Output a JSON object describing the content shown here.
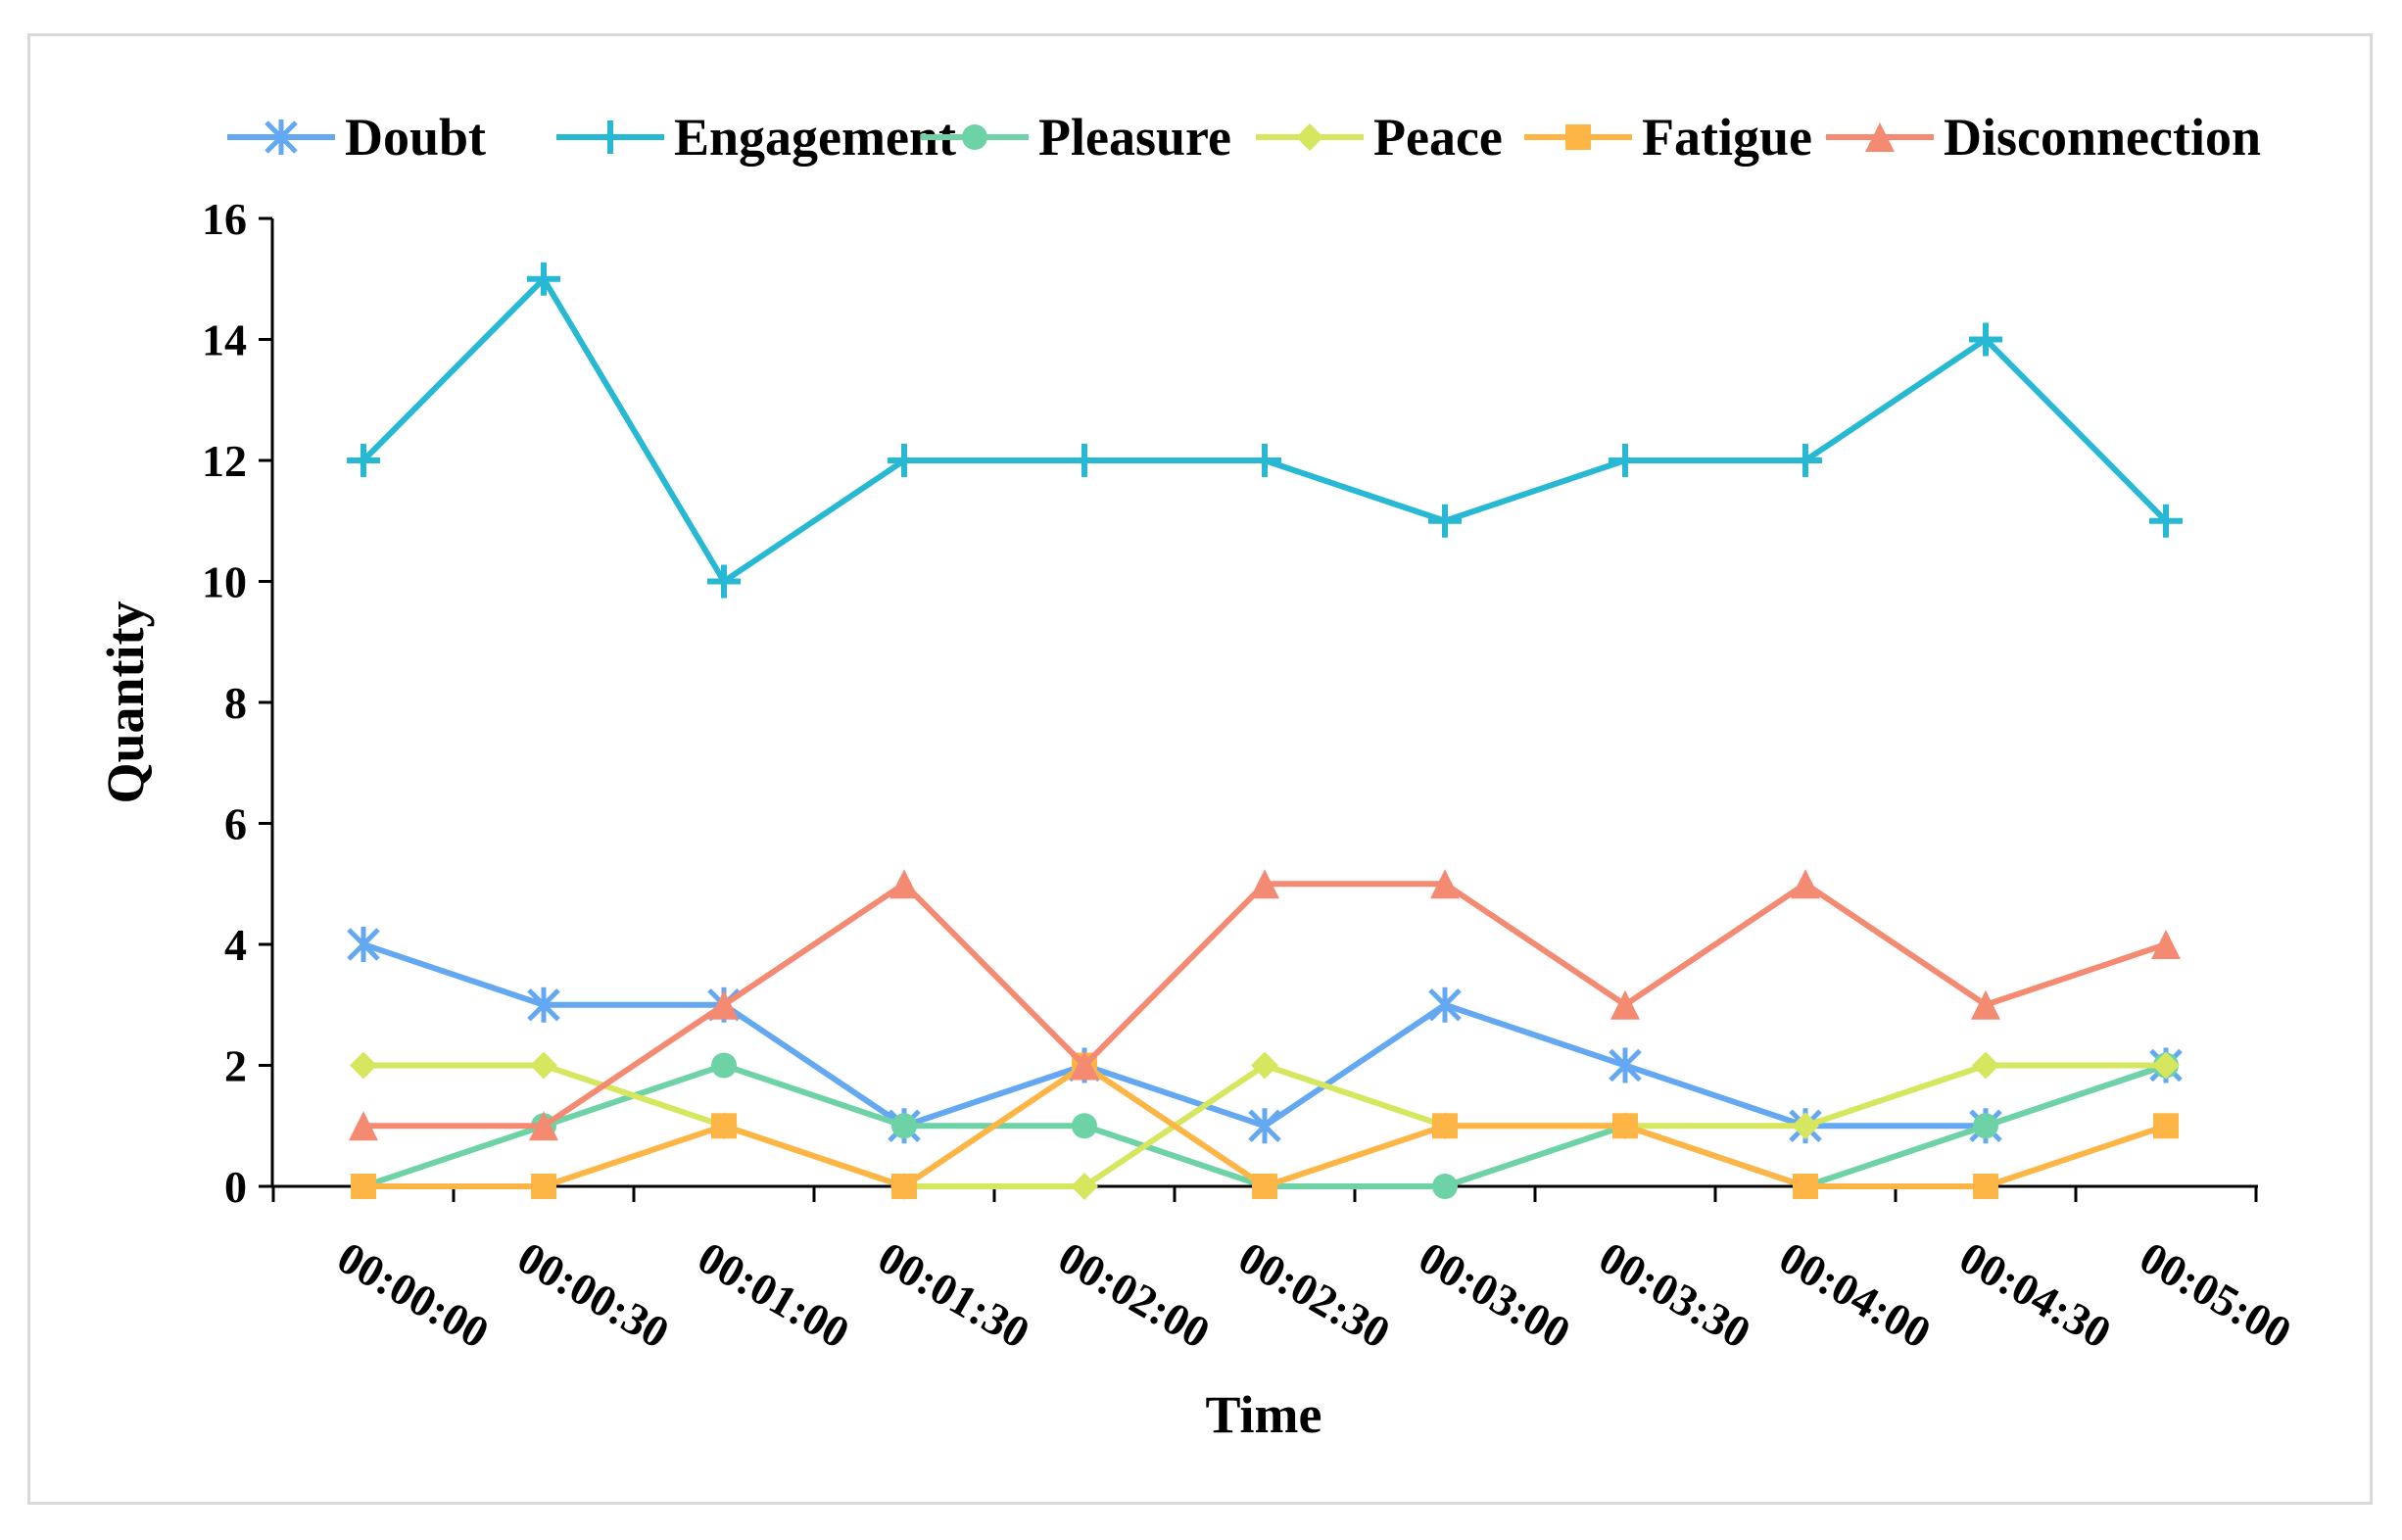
{
  "chart_data": {
    "type": "line",
    "title": "",
    "xlabel": "Time",
    "ylabel": "Quantity",
    "ylim": [
      0,
      16
    ],
    "yticks": [
      0,
      2,
      4,
      6,
      8,
      10,
      12,
      14,
      16
    ],
    "categories": [
      "00:00:00",
      "00:00:30",
      "00:01:00",
      "00:01:30",
      "00:02:00",
      "00:02:30",
      "00:03:00",
      "00:03:30",
      "00:04:00",
      "00:04:30",
      "00:05:00"
    ],
    "legend_position": "top",
    "grid": false,
    "series": [
      {
        "name": "Doubt",
        "color": "#64a8f2",
        "marker": "asterisk",
        "values": [
          4,
          3,
          3,
          1,
          2,
          1,
          3,
          2,
          1,
          1,
          2
        ]
      },
      {
        "name": "Engagement",
        "color": "#27b9d3",
        "marker": "plus",
        "values": [
          12,
          15,
          10,
          12,
          12,
          12,
          11,
          12,
          12,
          14,
          11
        ]
      },
      {
        "name": "Pleasure",
        "color": "#6dd2a6",
        "marker": "circle",
        "values": [
          0,
          1,
          2,
          1,
          1,
          0,
          0,
          1,
          0,
          1,
          2
        ]
      },
      {
        "name": "Peace",
        "color": "#d6e65e",
        "marker": "diamond",
        "values": [
          2,
          2,
          1,
          0,
          0,
          2,
          1,
          1,
          1,
          2,
          2
        ]
      },
      {
        "name": "Fatigue",
        "color": "#fdb546",
        "marker": "square",
        "values": [
          0,
          0,
          1,
          0,
          2,
          0,
          1,
          1,
          0,
          0,
          1
        ]
      },
      {
        "name": "Disconnection",
        "color": "#f58a73",
        "marker": "triangle",
        "values": [
          1,
          1,
          3,
          5,
          2,
          5,
          5,
          3,
          5,
          3,
          4
        ]
      }
    ]
  }
}
